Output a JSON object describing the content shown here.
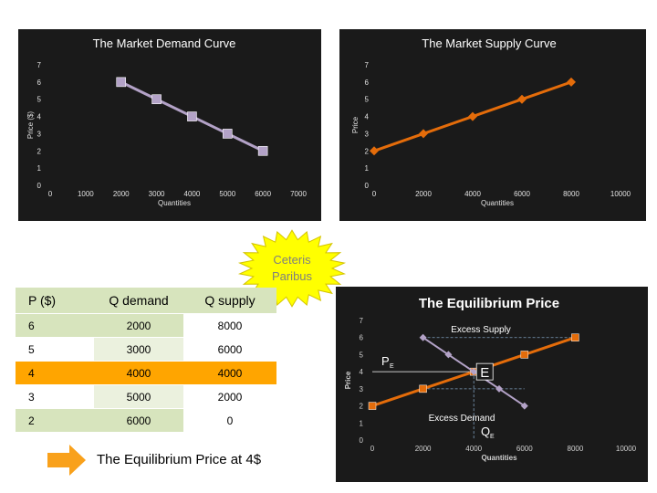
{
  "charts": {
    "demand": {
      "title": "The Market Demand Curve",
      "xlabel": "Quantities",
      "ylabel": "Price ($)",
      "xticks": [
        "0",
        "1000",
        "2000",
        "3000",
        "4000",
        "5000",
        "6000",
        "7000"
      ],
      "yticks": [
        "0",
        "1",
        "2",
        "3",
        "4",
        "5",
        "6",
        "7"
      ]
    },
    "supply": {
      "title": "The Market Supply Curve",
      "xlabel": "Quantities",
      "ylabel": "Price",
      "xticks": [
        "0",
        "2000",
        "4000",
        "6000",
        "8000",
        "10000"
      ],
      "yticks": [
        "0",
        "1",
        "2",
        "3",
        "4",
        "5",
        "6",
        "7"
      ]
    },
    "equilibrium": {
      "title": "The Equilibrium Price",
      "xlabel": "Quantities",
      "ylabel": "Price",
      "xticks": [
        "0",
        "2000",
        "4000",
        "6000",
        "8000",
        "10000"
      ],
      "yticks": [
        "0",
        "1",
        "2",
        "3",
        "4",
        "5",
        "6",
        "7"
      ],
      "ann_excess_supply": "Excess Supply",
      "ann_excess_demand": "Excess Demand",
      "ann_e": "E",
      "ann_pe": "P",
      "ann_pe_sub": "E",
      "ann_qe": "Q",
      "ann_qe_sub": "E"
    }
  },
  "chart_data": [
    {
      "type": "line",
      "title": "The Market Demand Curve",
      "xlabel": "Quantities",
      "ylabel": "Price ($)",
      "xlim": [
        0,
        7000
      ],
      "ylim": [
        0,
        7
      ],
      "series": [
        {
          "x": [
            2000,
            3000,
            4000,
            5000,
            6000
          ],
          "y": [
            6,
            5,
            4,
            3,
            2
          ],
          "color": "#b3a2c7"
        }
      ]
    },
    {
      "type": "line",
      "title": "The Market Supply Curve",
      "xlabel": "Quantities",
      "ylabel": "Price",
      "xlim": [
        0,
        10000
      ],
      "ylim": [
        0,
        7
      ],
      "series": [
        {
          "x": [
            0,
            2000,
            4000,
            6000,
            8000
          ],
          "y": [
            2,
            3,
            4,
            5,
            6
          ],
          "color": "#e46c0a"
        }
      ]
    },
    {
      "type": "line",
      "title": "The Equilibrium Price",
      "xlabel": "Quantities",
      "ylabel": "Price",
      "xlim": [
        0,
        10000
      ],
      "ylim": [
        0,
        7
      ],
      "series": [
        {
          "x": [
            0,
            2000,
            4000,
            6000,
            8000
          ],
          "y": [
            2,
            3,
            4,
            5,
            6
          ],
          "color": "#e46c0a"
        },
        {
          "x": [
            2000,
            3000,
            4000,
            5000,
            6000
          ],
          "y": [
            6,
            5,
            4,
            3,
            2
          ],
          "color": "#b3a2c7"
        }
      ]
    }
  ],
  "burst_label_1": "Ceteris",
  "burst_label_2": "Paribus",
  "table": {
    "headers": [
      "P ($)",
      "Q demand",
      "Q supply"
    ],
    "rows": [
      [
        "6",
        "2000",
        "8000"
      ],
      [
        "5",
        "3000",
        "6000"
      ],
      [
        "4",
        "4000",
        "4000"
      ],
      [
        "3",
        "5000",
        "2000"
      ],
      [
        "2",
        "6000",
        "0"
      ]
    ],
    "highlight_row": 2,
    "colors": {
      "header_bg": "#d7e4bd",
      "col0_bg": "#d7e4bd",
      "col1_bg": "#d7e4bd",
      "col2_bg": "#ffffff",
      "alt_col1_bg": "#ebf1de",
      "highlight_bg": "#ffa500"
    }
  },
  "footnote": "The Equilibrium Price at 4$",
  "colors": {
    "demand": "#b3a2c7",
    "supply": "#e46c0a",
    "burst": "#ffff00",
    "arrow": "#f9a11b"
  }
}
